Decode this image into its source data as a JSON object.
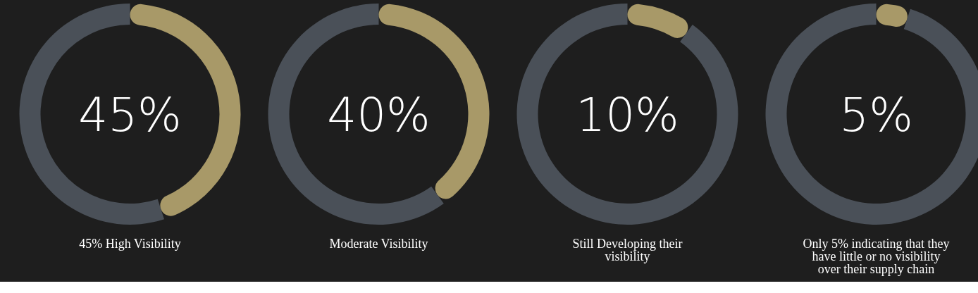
{
  "chart_data": [
    {
      "type": "donut",
      "categories": [
        null,
        null
      ],
      "values": [
        45,
        55
      ],
      "colors": [
        "#a89968",
        "#4a5058"
      ],
      "annotations": [
        "45%",
        "45% High Visibility"
      ]
    },
    {
      "type": "donut",
      "categories": [
        null,
        null
      ],
      "values": [
        40,
        60
      ],
      "colors": [
        "#a89968",
        "#4a5058"
      ],
      "annotations": [
        "40%",
        "Moderate Visibility"
      ]
    },
    {
      "type": "donut",
      "categories": [
        null,
        null
      ],
      "values": [
        10,
        90
      ],
      "colors": [
        "#a89968",
        "#4a5058"
      ],
      "annotations": [
        "10%",
        "Still Developing their visibility"
      ]
    },
    {
      "type": "donut",
      "categories": [
        null,
        null
      ],
      "values": [
        5,
        95
      ],
      "colors": [
        "#a89968",
        "#4a5058"
      ],
      "annotations": [
        "5%",
        "Only 5% indicating that they have little or no visibility over their supply chain"
      ]
    }
  ]
}
